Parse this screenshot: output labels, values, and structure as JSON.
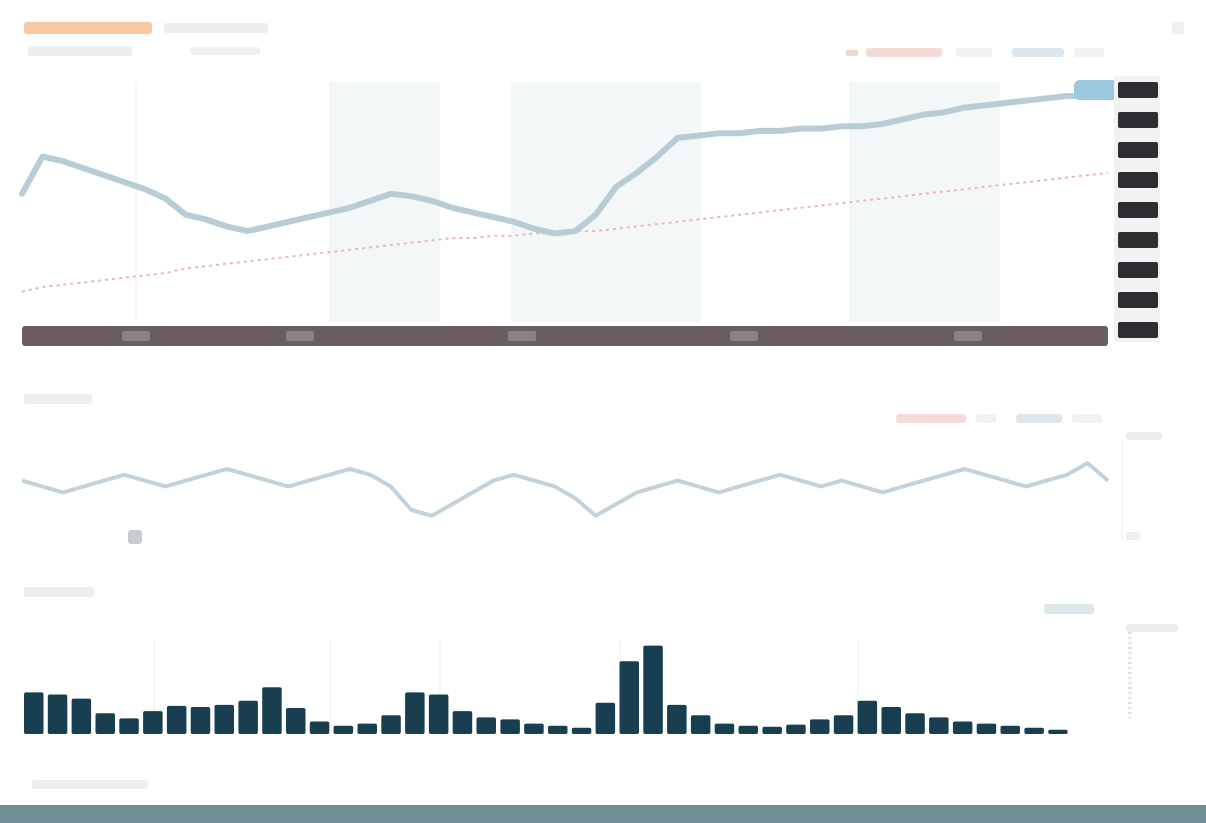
{
  "colors": {
    "price_line": "#b9ccd6",
    "ma_line": "#e9b8b0",
    "band": "#f4f7f8",
    "date_bar": "#6a5e62",
    "axis_bar": "#2f2f33",
    "volume_bar": "#173f50",
    "indicator_line": "#c3d2da",
    "ticker_accent": "#f08a3c",
    "highlight": "#9cc9e0",
    "bottom_strip": "#6f8e95"
  },
  "chart_data": [
    {
      "type": "line",
      "panel": "price",
      "grid": true,
      "x": [
        0,
        1,
        2,
        3,
        4,
        5,
        6,
        7,
        8,
        9,
        10,
        11,
        12,
        13,
        14,
        15,
        16,
        17,
        18,
        19,
        20,
        21,
        22,
        23,
        24,
        25,
        26,
        27,
        28,
        29,
        30,
        31,
        32,
        33,
        34,
        35,
        36,
        37,
        38,
        39,
        40,
        41,
        42,
        43,
        44,
        45,
        46,
        47,
        48,
        49,
        50,
        51,
        52,
        53
      ],
      "ylim": [
        0,
        100
      ],
      "series": [
        {
          "role": "price",
          "values": [
            52,
            68,
            66,
            63,
            60,
            57,
            54,
            50,
            43,
            41,
            38,
            36,
            38,
            40,
            42,
            44,
            46,
            49,
            52,
            51,
            49,
            46,
            44,
            42,
            40,
            37,
            35,
            36,
            43,
            55,
            61,
            68,
            76,
            77,
            78,
            78,
            79,
            79,
            80,
            80,
            81,
            81,
            82,
            84,
            86,
            87,
            89,
            90,
            91,
            92,
            93,
            94,
            94,
            95
          ]
        },
        {
          "role": "moving-average",
          "values": [
            10,
            12,
            13,
            14,
            15,
            16,
            17,
            18,
            20,
            21,
            22,
            23,
            24,
            25,
            26,
            27,
            28,
            29,
            30,
            31,
            32,
            33,
            33,
            34,
            34,
            35,
            35,
            36,
            36,
            37,
            38,
            39,
            40,
            41,
            42,
            43,
            44,
            45,
            46,
            47,
            48,
            49,
            50,
            51,
            52,
            53,
            54,
            55,
            56,
            57,
            58,
            59,
            60,
            61
          ]
        }
      ]
    },
    {
      "type": "line",
      "panel": "indicator",
      "grid": false,
      "x": [
        0,
        1,
        2,
        3,
        4,
        5,
        6,
        7,
        8,
        9,
        10,
        11,
        12,
        13,
        14,
        15,
        16,
        17,
        18,
        19,
        20,
        21,
        22,
        23,
        24,
        25,
        26,
        27,
        28,
        29,
        30,
        31,
        32,
        33,
        34,
        35,
        36,
        37,
        38,
        39,
        40,
        41,
        42,
        43,
        44,
        45,
        46,
        47,
        48,
        49,
        50,
        51,
        52,
        53
      ],
      "ylim": [
        -10,
        10
      ],
      "series": [
        {
          "role": "indicator",
          "values": [
            1,
            0,
            -1,
            0,
            1,
            2,
            1,
            0,
            1,
            2,
            3,
            2,
            1,
            0,
            1,
            2,
            3,
            2,
            0,
            -4,
            -5,
            -3,
            -1,
            1,
            2,
            1,
            0,
            -2,
            -5,
            -3,
            -1,
            0,
            1,
            0,
            -1,
            0,
            1,
            2,
            1,
            0,
            1,
            0,
            -1,
            0,
            1,
            2,
            3,
            2,
            1,
            0,
            1,
            2,
            4,
            1
          ]
        }
      ]
    },
    {
      "type": "bar",
      "panel": "volume",
      "grid": true,
      "x": [
        0,
        1,
        2,
        3,
        4,
        5,
        6,
        7,
        8,
        9,
        10,
        11,
        12,
        13,
        14,
        15,
        16,
        17,
        18,
        19,
        20,
        21,
        22,
        23,
        24,
        25,
        26,
        27,
        28,
        29,
        30,
        31,
        32,
        33,
        34,
        35,
        36,
        37,
        38,
        39,
        40,
        41,
        42,
        43
      ],
      "ylim": [
        0,
        100
      ],
      "values": [
        40,
        38,
        34,
        20,
        15,
        22,
        27,
        26,
        28,
        32,
        45,
        25,
        12,
        8,
        10,
        18,
        40,
        38,
        22,
        16,
        14,
        10,
        8,
        6,
        30,
        70,
        85,
        28,
        18,
        10,
        8,
        7,
        9,
        14,
        18,
        32,
        26,
        20,
        16,
        12,
        10,
        8,
        6,
        4
      ]
    }
  ]
}
